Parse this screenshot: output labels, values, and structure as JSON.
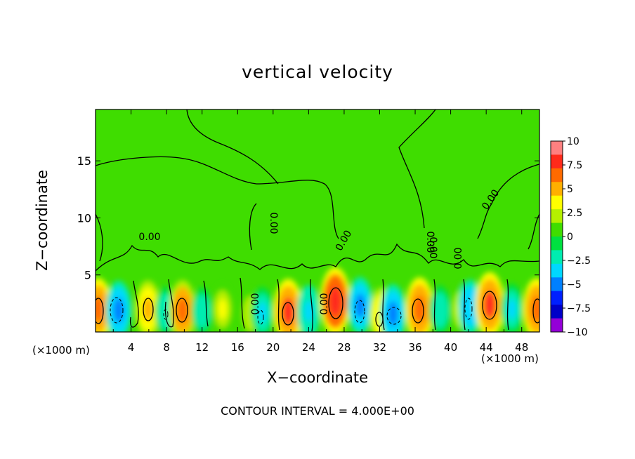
{
  "chart_data": {
    "type": "heatmap",
    "title": "vertical velocity",
    "xlabel": "X−coordinate",
    "ylabel": "Z−coordinate",
    "x_unit_label": "(×1000 m)",
    "x_unit_label_right": "(×1000 m)",
    "footnote": "CONTOUR INTERVAL = 4.000E+00",
    "xlim": [
      0,
      50
    ],
    "ylim": [
      0,
      19.5
    ],
    "xticks": [
      4,
      8,
      12,
      16,
      20,
      24,
      28,
      32,
      36,
      40,
      44,
      48
    ],
    "yticks": [
      5,
      10,
      15
    ],
    "contour_labels": [
      "0.00",
      "0.00",
      "0.00",
      "0.00",
      "0.00",
      "0.00",
      "0.00",
      "0.00",
      "0.00"
    ],
    "colorbar": {
      "ticks": [
        "10",
        "7.5",
        "5",
        "2.5",
        "0",
        "−2.5",
        "−5",
        "−7.5",
        "−10"
      ],
      "colors": [
        "#ff8080",
        "#ff2a1a",
        "#ff6a00",
        "#ffb000",
        "#ffff00",
        "#b5f000",
        "#3fdd00",
        "#00e040",
        "#00ecb0",
        "#00d8ff",
        "#0080ff",
        "#0020ff",
        "#0000c8",
        "#9400d8"
      ]
    },
    "cells": [
      {
        "x": 0.3,
        "z": 2.0,
        "w": 6.5
      },
      {
        "x": 2.6,
        "z": 1.9,
        "w": -5.5
      },
      {
        "x": 5.9,
        "z": 2.0,
        "w": 5.0
      },
      {
        "x": 7.9,
        "z": 1.8,
        "w": -2.5
      },
      {
        "x": 9.8,
        "z": 1.9,
        "w": 6.0
      },
      {
        "x": 12.0,
        "z": 1.8,
        "w": -2.0
      },
      {
        "x": 14.3,
        "z": 2.0,
        "w": 3.0
      },
      {
        "x": 17.5,
        "z": 1.6,
        "w": 2.2
      },
      {
        "x": 18.8,
        "z": 1.7,
        "w": -3.0
      },
      {
        "x": 21.7,
        "z": 1.8,
        "w": 7.5
      },
      {
        "x": 24.0,
        "z": 1.8,
        "w": -3.5
      },
      {
        "x": 27.0,
        "z": 2.7,
        "w": 8.5
      },
      {
        "x": 29.8,
        "z": 2.3,
        "w": -5.0
      },
      {
        "x": 32.2,
        "z": 1.5,
        "w": 4.0
      },
      {
        "x": 33.5,
        "z": 1.6,
        "w": -5.5
      },
      {
        "x": 36.5,
        "z": 2.0,
        "w": 7.0
      },
      {
        "x": 38.8,
        "z": 1.9,
        "w": -2.5
      },
      {
        "x": 41.2,
        "z": 2.0,
        "w": 3.0
      },
      {
        "x": 42.2,
        "z": 2.2,
        "w": -4.0
      },
      {
        "x": 44.4,
        "z": 2.4,
        "w": 7.5
      },
      {
        "x": 46.9,
        "z": 2.0,
        "w": -3.0
      },
      {
        "x": 49.7,
        "z": 2.0,
        "w": 6.5
      }
    ]
  }
}
